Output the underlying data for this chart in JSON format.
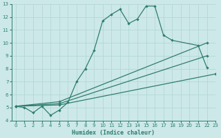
{
  "xlabel": "Humidex (Indice chaleur)",
  "xlim": [
    -0.5,
    23
  ],
  "ylim": [
    4,
    13
  ],
  "bg_color": "#cce8e8",
  "grid_color": "#b0d4d4",
  "line_color": "#2e7d6e",
  "lines": [
    {
      "x": [
        0,
        1,
        2,
        3,
        4,
        5,
        6,
        7,
        8,
        9,
        10,
        11,
        12,
        13,
        14,
        15,
        16,
        17,
        18,
        21,
        22
      ],
      "y": [
        5.1,
        5.0,
        4.6,
        5.1,
        4.4,
        4.8,
        5.4,
        7.0,
        8.0,
        9.4,
        11.7,
        12.2,
        12.6,
        11.5,
        11.85,
        12.85,
        12.85,
        10.6,
        10.2,
        9.8,
        8.1
      ]
    },
    {
      "x": [
        0,
        5,
        22
      ],
      "y": [
        5.1,
        5.45,
        10.0
      ]
    },
    {
      "x": [
        0,
        5,
        22
      ],
      "y": [
        5.1,
        5.3,
        9.0
      ]
    },
    {
      "x": [
        0,
        5,
        23
      ],
      "y": [
        5.1,
        5.2,
        7.6
      ]
    }
  ]
}
